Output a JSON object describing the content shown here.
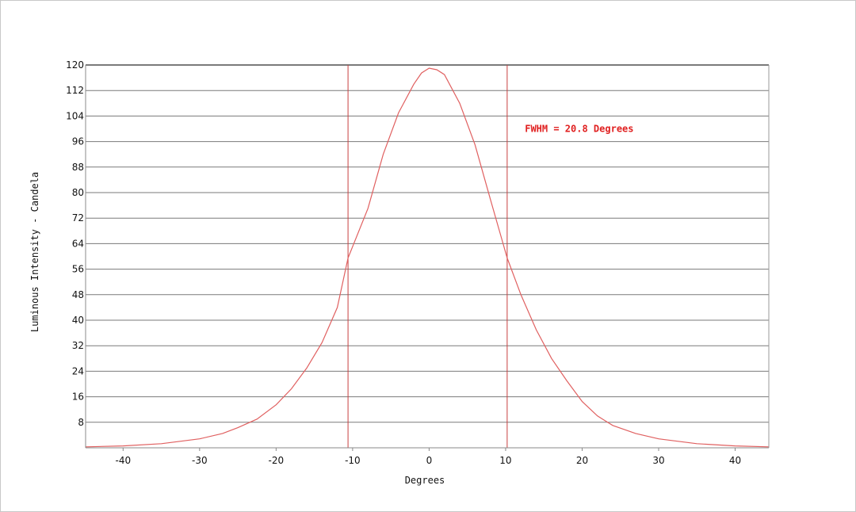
{
  "chart_data": {
    "type": "line",
    "title": "",
    "xlabel": "Degrees",
    "ylabel": "Luminous Intensity - Candela",
    "xlim": [
      -44.9,
      44.4
    ],
    "ylim": [
      0,
      120
    ],
    "xticks": [
      -40,
      -30,
      -20,
      -10,
      0,
      10,
      20,
      30,
      40
    ],
    "yticks": [
      8,
      16,
      24,
      32,
      40,
      48,
      56,
      64,
      72,
      80,
      88,
      96,
      104,
      112,
      120
    ],
    "grid": "horizontal",
    "series": [
      {
        "name": "Luminous Intensity",
        "color": "#e06060",
        "x": [
          -44.9,
          -40,
          -35,
          -30,
          -27,
          -25,
          -22.5,
          -20,
          -18,
          -16,
          -14,
          -12,
          -10.6,
          -8,
          -6,
          -4,
          -2,
          -1,
          0,
          1,
          2,
          4,
          6,
          8,
          10.2,
          12,
          14,
          16,
          18,
          20,
          22,
          24,
          27,
          30,
          35,
          40,
          44.4
        ],
        "y": [
          0.3,
          0.6,
          1.3,
          2.8,
          4.5,
          6.3,
          9,
          13.5,
          18.5,
          25,
          33,
          44,
          59.5,
          75,
          92,
          105,
          114,
          117.5,
          119,
          118.5,
          117,
          108,
          95,
          78,
          59.5,
          48,
          37,
          28,
          21,
          14.5,
          10,
          7,
          4.5,
          2.8,
          1.3,
          0.6,
          0.3
        ]
      }
    ],
    "markers": [
      {
        "type": "vline",
        "x": -10.6,
        "color": "#c84040"
      },
      {
        "type": "vline",
        "x": 10.2,
        "color": "#c84040"
      }
    ],
    "annotations": [
      {
        "text": "FWHM = 20.8 Degrees",
        "x": 12,
        "y": 99,
        "color": "#e02020"
      }
    ]
  }
}
